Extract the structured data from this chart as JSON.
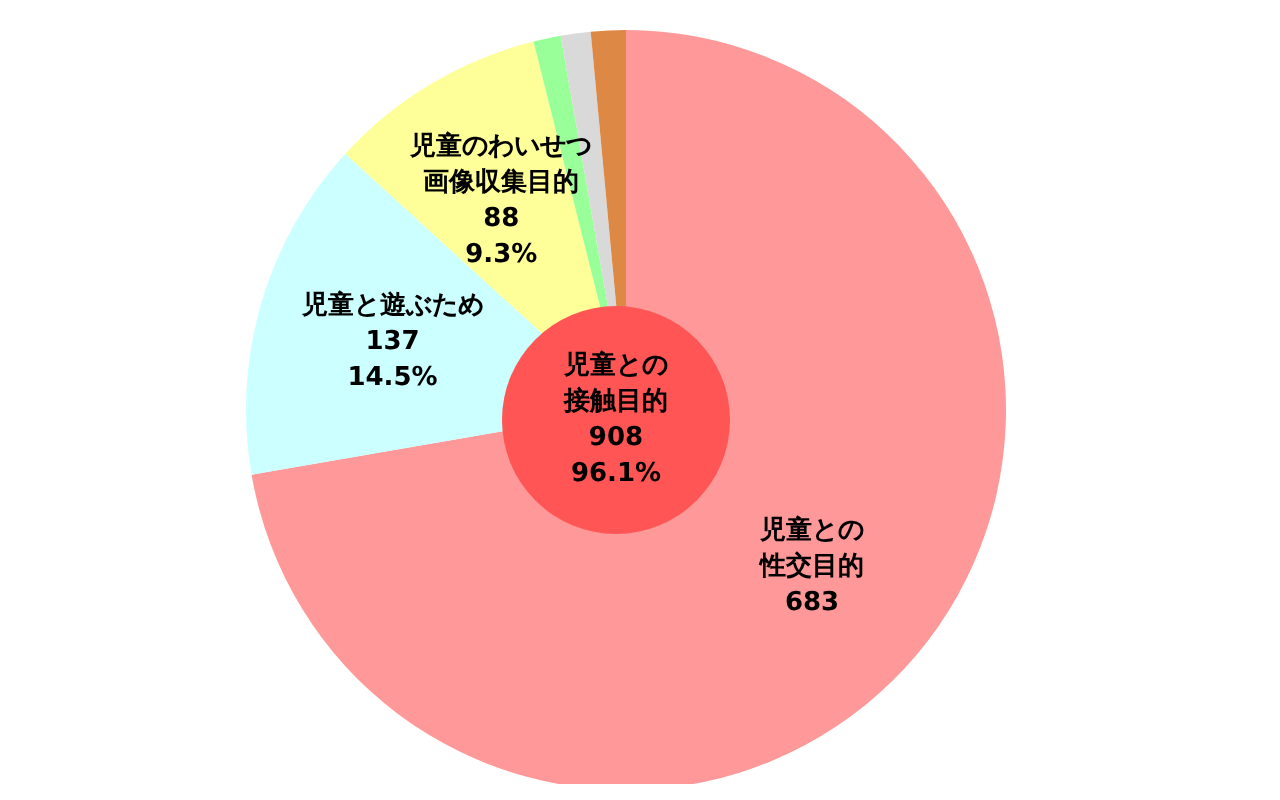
{
  "chart_data": {
    "type": "pie",
    "categories": [
      "児童との性交目的",
      "児童と遊ぶため",
      "児童のわいせつ画像収集目的",
      null,
      null,
      null
    ],
    "values": [
      683,
      137,
      88,
      11,
      12,
      14
    ],
    "colors": [
      "#ff9999",
      "#ccffff",
      "#ffff99",
      "#99ff99",
      "#d9d9d9",
      "#dd8844"
    ],
    "value_labels": [
      "683",
      "137\n14.5%",
      "88\n9.3%",
      null,
      null,
      null
    ],
    "annotations": [
      "児童との接触目的\n908\n96.1%"
    ]
  }
}
